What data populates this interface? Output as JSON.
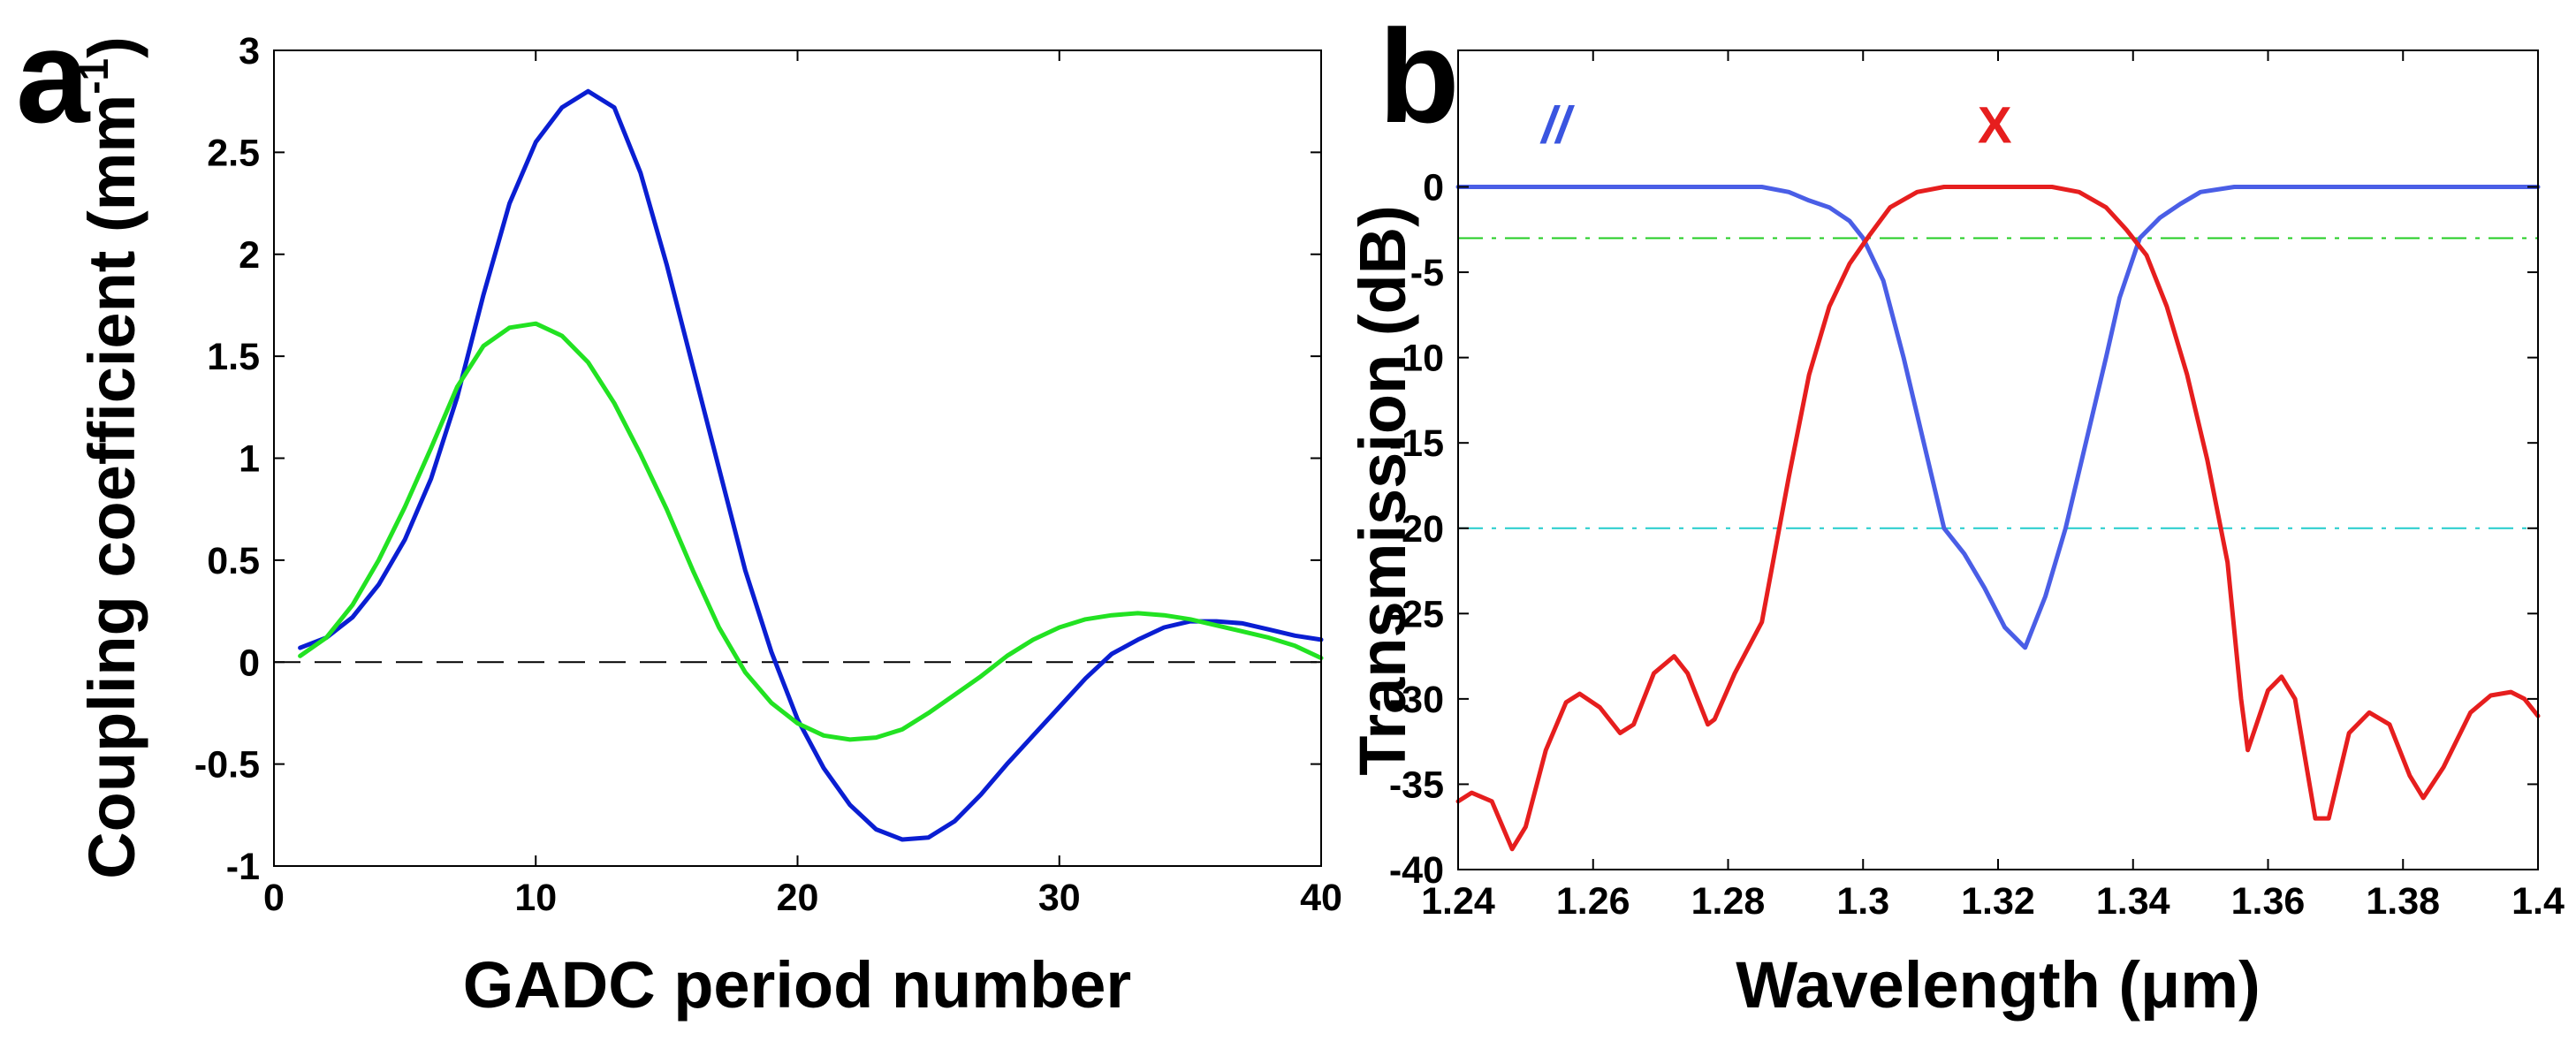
{
  "panel_labels": [
    "a",
    "b"
  ],
  "chart_data": [
    {
      "type": "line",
      "panel": "a",
      "xlabel": "GADC period number",
      "ylabel_main": "Coupling coefficient (mm",
      "ylabel_sup": "-1",
      "ylabel_close": ")",
      "xlim": [
        0,
        40
      ],
      "ylim": [
        -1,
        3
      ],
      "xticks": [
        0,
        10,
        20,
        30,
        40
      ],
      "yticks": [
        -1,
        -0.5,
        0,
        0.5,
        1,
        1.5,
        2,
        2.5,
        3
      ],
      "xtick_labels": [
        "0",
        "10",
        "20",
        "30",
        "40"
      ],
      "ytick_labels": [
        "-1",
        "-0.5",
        "0",
        "0.5",
        "1",
        "1.5",
        "2",
        "2.5",
        "3"
      ],
      "grid": false,
      "reference_lines": [
        {
          "y": 0,
          "style": "dashed",
          "color": "#000000"
        }
      ],
      "series": [
        {
          "color": "#0a1ed2",
          "points": [
            [
              1,
              0.07
            ],
            [
              2,
              0.12
            ],
            [
              3,
              0.22
            ],
            [
              4,
              0.38
            ],
            [
              5,
              0.6
            ],
            [
              6,
              0.9
            ],
            [
              7,
              1.3
            ],
            [
              8,
              1.8
            ],
            [
              9,
              2.25
            ],
            [
              10,
              2.55
            ],
            [
              11,
              2.72
            ],
            [
              12,
              2.8
            ],
            [
              13,
              2.72
            ],
            [
              14,
              2.4
            ],
            [
              15,
              1.95
            ],
            [
              16,
              1.45
            ],
            [
              17,
              0.95
            ],
            [
              18,
              0.45
            ],
            [
              19,
              0.05
            ],
            [
              20,
              -0.28
            ],
            [
              21,
              -0.52
            ],
            [
              22,
              -0.7
            ],
            [
              23,
              -0.82
            ],
            [
              24,
              -0.87
            ],
            [
              25,
              -0.86
            ],
            [
              26,
              -0.78
            ],
            [
              27,
              -0.65
            ],
            [
              28,
              -0.5
            ],
            [
              29,
              -0.36
            ],
            [
              30,
              -0.22
            ],
            [
              31,
              -0.08
            ],
            [
              32,
              0.04
            ],
            [
              33,
              0.11
            ],
            [
              34,
              0.17
            ],
            [
              35,
              0.2
            ],
            [
              36,
              0.2
            ],
            [
              37,
              0.19
            ],
            [
              38,
              0.16
            ],
            [
              39,
              0.13
            ],
            [
              40,
              0.11
            ]
          ]
        },
        {
          "color": "#22e222",
          "points": [
            [
              1,
              0.03
            ],
            [
              2,
              0.12
            ],
            [
              3,
              0.28
            ],
            [
              4,
              0.5
            ],
            [
              5,
              0.76
            ],
            [
              6,
              1.05
            ],
            [
              7,
              1.35
            ],
            [
              8,
              1.55
            ],
            [
              9,
              1.64
            ],
            [
              10,
              1.66
            ],
            [
              11,
              1.6
            ],
            [
              12,
              1.47
            ],
            [
              13,
              1.27
            ],
            [
              14,
              1.02
            ],
            [
              15,
              0.75
            ],
            [
              16,
              0.45
            ],
            [
              17,
              0.17
            ],
            [
              18,
              -0.05
            ],
            [
              19,
              -0.2
            ],
            [
              20,
              -0.3
            ],
            [
              21,
              -0.36
            ],
            [
              22,
              -0.38
            ],
            [
              23,
              -0.37
            ],
            [
              24,
              -0.33
            ],
            [
              25,
              -0.25
            ],
            [
              26,
              -0.16
            ],
            [
              27,
              -0.07
            ],
            [
              28,
              0.03
            ],
            [
              29,
              0.11
            ],
            [
              30,
              0.17
            ],
            [
              31,
              0.21
            ],
            [
              32,
              0.23
            ],
            [
              33,
              0.24
            ],
            [
              34,
              0.23
            ],
            [
              35,
              0.21
            ],
            [
              36,
              0.18
            ],
            [
              37,
              0.15
            ],
            [
              38,
              0.12
            ],
            [
              39,
              0.08
            ],
            [
              40,
              0.02
            ]
          ]
        }
      ]
    },
    {
      "type": "line",
      "panel": "b",
      "xlabel": "Wavelength (μm)",
      "ylabel": "Transmission (dB)",
      "xlim": [
        1.24,
        1.4
      ],
      "ylim": [
        -40,
        8
      ],
      "xticks": [
        1.24,
        1.26,
        1.28,
        1.3,
        1.32,
        1.34,
        1.36,
        1.38,
        1.4
      ],
      "yticks": [
        -40,
        -35,
        -30,
        -25,
        -20,
        -15,
        -10,
        -5,
        0
      ],
      "xtick_labels": [
        "1.24",
        "1.26",
        "1.28",
        "1.3",
        "1.32",
        "1.34",
        "1.36",
        "1.38",
        "1.4"
      ],
      "ytick_labels": [
        "-40",
        "-35",
        "-30",
        "-25",
        "-20",
        "-15",
        "-10",
        "-5",
        "0"
      ],
      "grid": false,
      "reference_lines": [
        {
          "y": -3,
          "style": "dash-dot",
          "color": "#22cc22"
        },
        {
          "y": -20,
          "style": "dash-dot",
          "color": "#22cccc"
        }
      ],
      "annotations": [
        {
          "text": "//",
          "x": 1.2545,
          "y": 3,
          "color": "#3a55e0",
          "italic": true
        },
        {
          "text": "X",
          "x": 1.3195,
          "y": 3,
          "color": "#e61e1e",
          "italic": false
        }
      ],
      "series": [
        {
          "color": "#4a5ee6",
          "points": [
            [
              1.24,
              0
            ],
            [
              1.285,
              0
            ],
            [
              1.289,
              -0.3
            ],
            [
              1.292,
              -0.8
            ],
            [
              1.295,
              -1.2
            ],
            [
              1.298,
              -2
            ],
            [
              1.3,
              -3
            ],
            [
              1.303,
              -5.5
            ],
            [
              1.306,
              -10
            ],
            [
              1.309,
              -15
            ],
            [
              1.312,
              -20
            ],
            [
              1.315,
              -21.5
            ],
            [
              1.318,
              -23.5
            ],
            [
              1.321,
              -25.8
            ],
            [
              1.324,
              -27
            ],
            [
              1.327,
              -24
            ],
            [
              1.33,
              -20
            ],
            [
              1.333,
              -15
            ],
            [
              1.336,
              -10
            ],
            [
              1.338,
              -6.5
            ],
            [
              1.341,
              -3
            ],
            [
              1.344,
              -1.8
            ],
            [
              1.347,
              -1
            ],
            [
              1.35,
              -0.3
            ],
            [
              1.355,
              0
            ],
            [
              1.4,
              0
            ]
          ]
        },
        {
          "color": "#e61e1e",
          "points": [
            [
              1.24,
              -36
            ],
            [
              1.242,
              -35.5
            ],
            [
              1.245,
              -36
            ],
            [
              1.248,
              -38.8
            ],
            [
              1.25,
              -37.5
            ],
            [
              1.253,
              -33
            ],
            [
              1.256,
              -30.2
            ],
            [
              1.258,
              -29.7
            ],
            [
              1.261,
              -30.5
            ],
            [
              1.264,
              -32
            ],
            [
              1.266,
              -31.5
            ],
            [
              1.269,
              -28.5
            ],
            [
              1.272,
              -27.5
            ],
            [
              1.274,
              -28.5
            ],
            [
              1.277,
              -31.5
            ],
            [
              1.278,
              -31.2
            ],
            [
              1.281,
              -28.5
            ],
            [
              1.285,
              -25.5
            ],
            [
              1.289,
              -17
            ],
            [
              1.292,
              -11
            ],
            [
              1.295,
              -7
            ],
            [
              1.298,
              -4.5
            ],
            [
              1.301,
              -2.8
            ],
            [
              1.304,
              -1.2
            ],
            [
              1.308,
              -0.3
            ],
            [
              1.312,
              0
            ],
            [
              1.328,
              0
            ],
            [
              1.332,
              -0.3
            ],
            [
              1.336,
              -1.2
            ],
            [
              1.339,
              -2.5
            ],
            [
              1.342,
              -4
            ],
            [
              1.345,
              -7
            ],
            [
              1.348,
              -11
            ],
            [
              1.351,
              -16
            ],
            [
              1.354,
              -22
            ],
            [
              1.356,
              -30
            ],
            [
              1.357,
              -33
            ],
            [
              1.36,
              -29.5
            ],
            [
              1.362,
              -28.7
            ],
            [
              1.364,
              -30
            ],
            [
              1.367,
              -37
            ],
            [
              1.369,
              -37
            ],
            [
              1.372,
              -32
            ],
            [
              1.375,
              -30.8
            ],
            [
              1.378,
              -31.5
            ],
            [
              1.381,
              -34.5
            ],
            [
              1.383,
              -35.8
            ],
            [
              1.386,
              -34
            ],
            [
              1.39,
              -30.8
            ],
            [
              1.393,
              -29.8
            ],
            [
              1.396,
              -29.6
            ],
            [
              1.398,
              -30
            ],
            [
              1.4,
              -31
            ]
          ]
        }
      ]
    }
  ]
}
